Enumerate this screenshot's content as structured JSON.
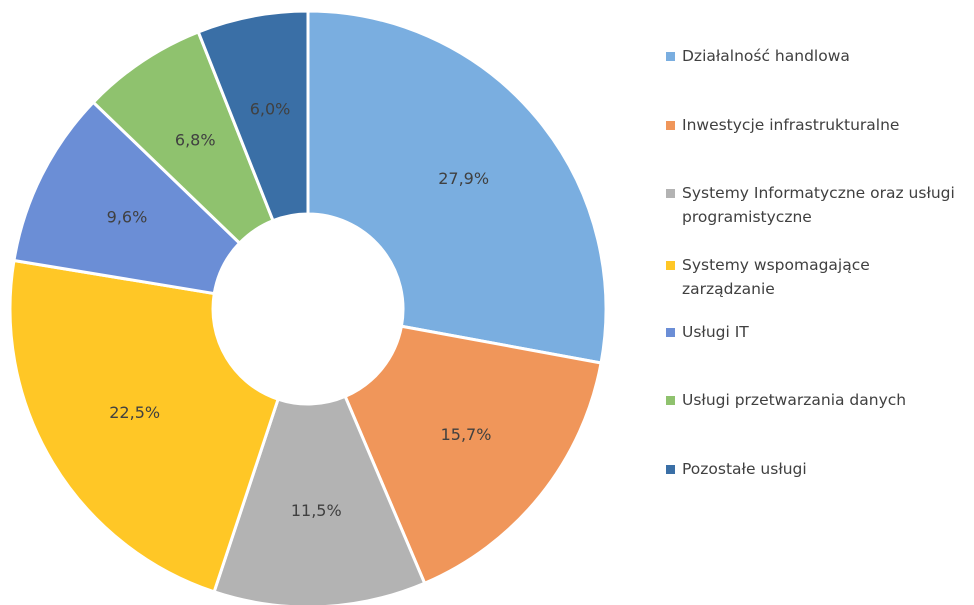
{
  "chart_data": {
    "type": "donut",
    "categories": [
      "Działalność handlowa",
      "Inwestycje infrastrukturalne",
      "Systemy Informatyczne oraz usługi programistyczne",
      "Systemy wspomagające zarządzanie",
      "Usługi IT",
      "Usługi przetwarzania danych",
      "Pozostałe usługi"
    ],
    "values": [
      27.9,
      15.7,
      11.5,
      22.5,
      9.6,
      6.8,
      6.0
    ],
    "value_labels": [
      "27,9%",
      "15,7%",
      "11,5%",
      "22,5%",
      "9,6%",
      "6,8%",
      "6,0%"
    ],
    "colors": [
      "#7aaee0",
      "#f0965a",
      "#b3b3b3",
      "#ffc726",
      "#6b8ed6",
      "#8fc26e",
      "#3a6fa6"
    ],
    "legend": "right"
  }
}
